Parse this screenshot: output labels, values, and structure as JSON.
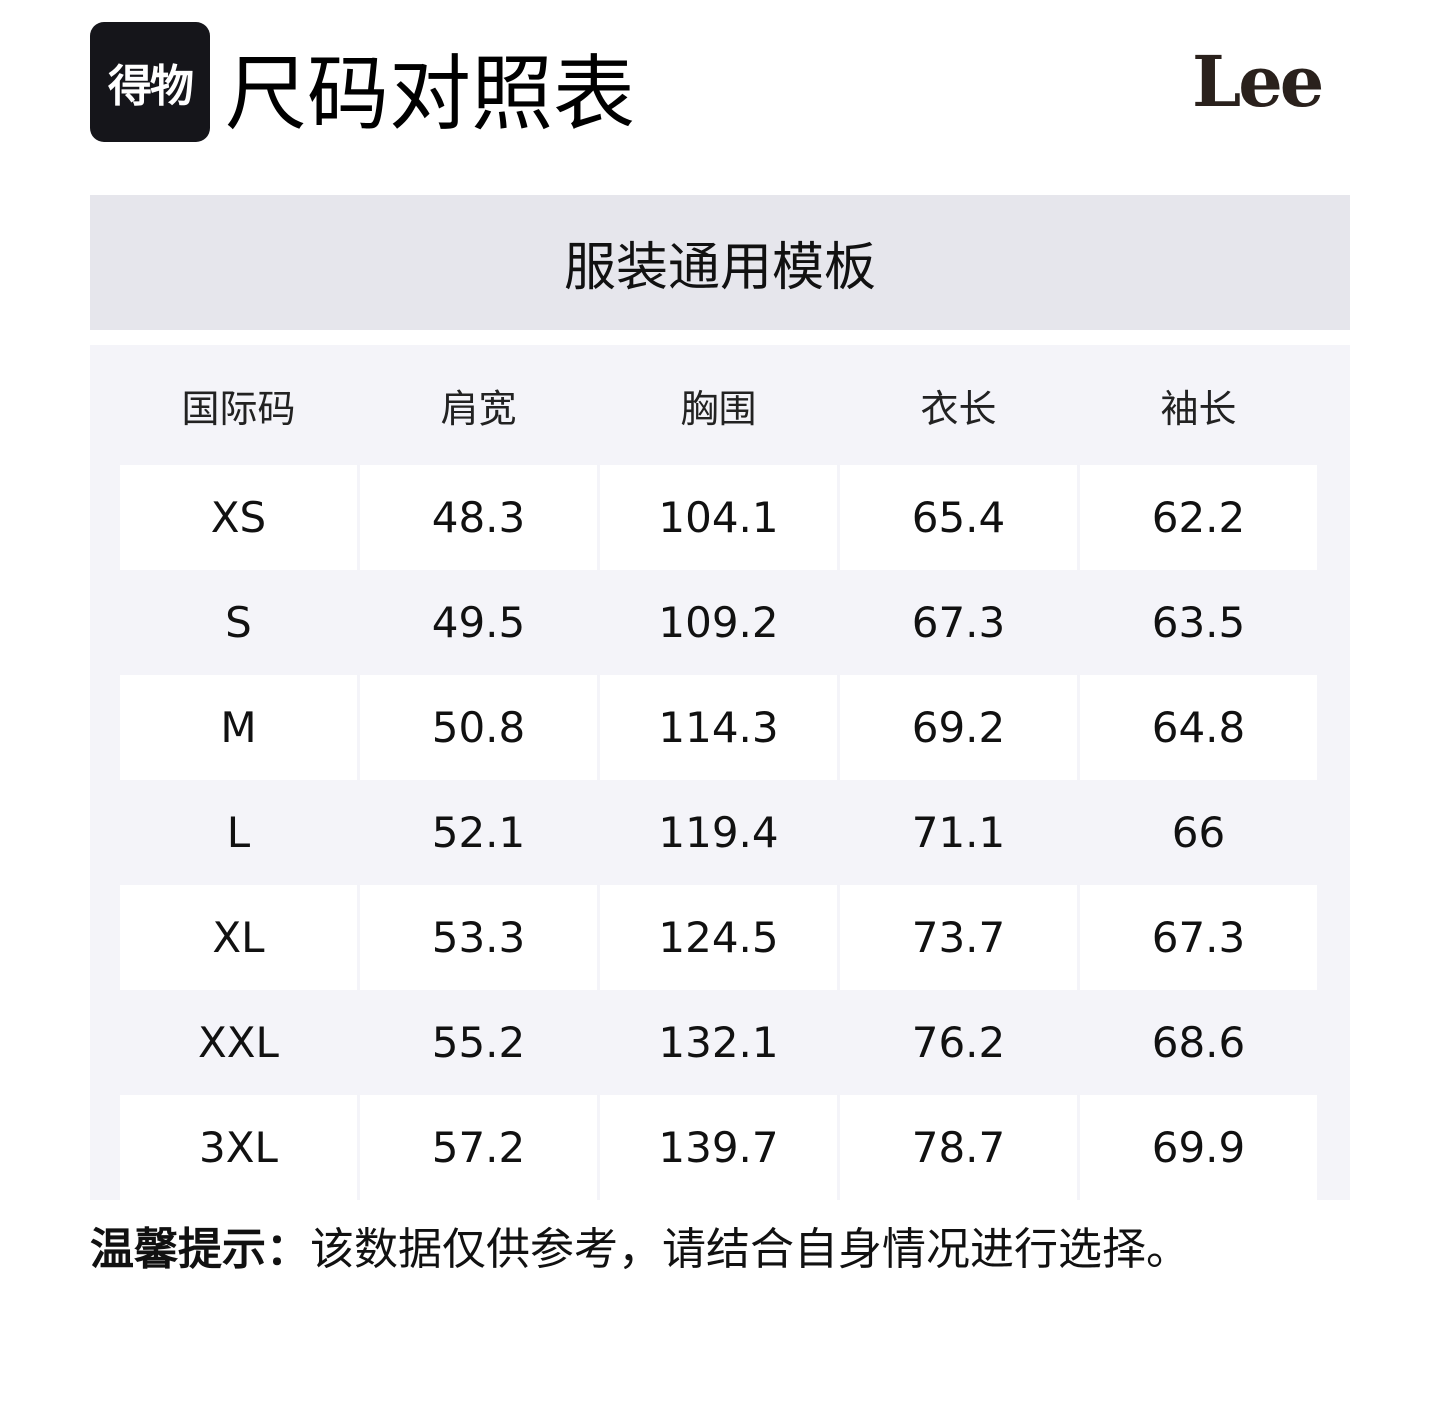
{
  "header": {
    "logo_text": "得物",
    "title": "尺码对照表",
    "brand_logo": "Lee"
  },
  "section_title": "服装通用模板",
  "table": {
    "columns": [
      "国际码",
      "肩宽",
      "胸围",
      "衣长",
      "袖长"
    ],
    "rows": [
      [
        "XS",
        "48.3",
        "104.1",
        "65.4",
        "62.2"
      ],
      [
        "S",
        "49.5",
        "109.2",
        "67.3",
        "63.5"
      ],
      [
        "M",
        "50.8",
        "114.3",
        "69.2",
        "64.8"
      ],
      [
        "L",
        "52.1",
        "119.4",
        "71.1",
        "66"
      ],
      [
        "XL",
        "53.3",
        "124.5",
        "73.7",
        "67.3"
      ],
      [
        "XXL",
        "55.2",
        "132.1",
        "76.2",
        "68.6"
      ],
      [
        "3XL",
        "57.2",
        "139.7",
        "78.7",
        "69.9"
      ]
    ]
  },
  "note": {
    "label": "温馨提示：",
    "text": "该数据仅供参考，请结合自身情况进行选择。"
  }
}
